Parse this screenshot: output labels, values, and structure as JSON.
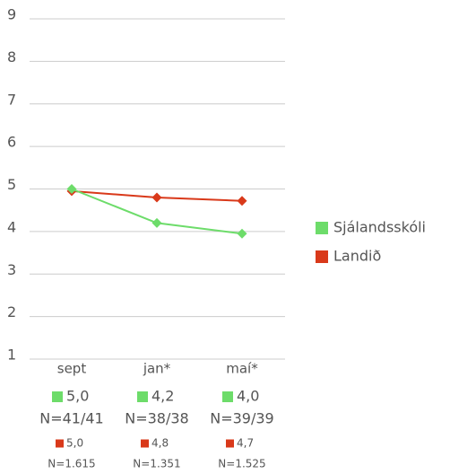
{
  "chart_data": {
    "type": "line",
    "categories": [
      "sept",
      "jan*",
      "maí*"
    ],
    "series": [
      {
        "name": "Sjálandsskóli",
        "color": "#6ddc6a",
        "values": [
          5.0,
          4.2,
          3.95
        ],
        "value_labels": [
          "5,0",
          "4,2",
          "4,0"
        ],
        "n_labels": [
          "N=41/41",
          "N=38/38",
          "N=39/39"
        ]
      },
      {
        "name": "Landið",
        "color": "#d9391a",
        "values": [
          4.95,
          4.8,
          4.72
        ],
        "value_labels": [
          "5,0",
          "4,8",
          "4,7"
        ],
        "n_labels": [
          "N=1.615",
          "N=1.351",
          "N=1.525"
        ]
      }
    ],
    "ylim": [
      1,
      9
    ],
    "yticks": [
      1,
      2,
      3,
      4,
      5,
      6,
      7,
      8,
      9
    ],
    "grid": true,
    "legend": "right"
  }
}
